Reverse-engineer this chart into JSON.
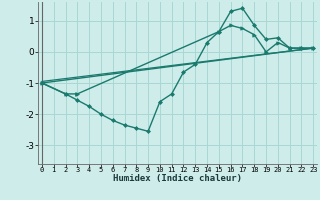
{
  "background_color": "#ceecea",
  "grid_color": "#a8d8d4",
  "line_color": "#1a7a6e",
  "xlim": [
    -0.3,
    23.3
  ],
  "ylim": [
    -3.6,
    1.6
  ],
  "xlabel": "Humidex (Indice chaleur)",
  "yticks": [
    -3,
    -2,
    -1,
    0,
    1
  ],
  "xticks": [
    0,
    1,
    2,
    3,
    4,
    5,
    6,
    7,
    8,
    9,
    10,
    11,
    12,
    13,
    14,
    15,
    16,
    17,
    18,
    19,
    20,
    21,
    22,
    23
  ],
  "series": [
    {
      "x": [
        0,
        2,
        3,
        4,
        5,
        6,
        7,
        8,
        9,
        10,
        11,
        12,
        13,
        14,
        15,
        16,
        17,
        18,
        19,
        20,
        21,
        22,
        23
      ],
      "y": [
        -1.0,
        -1.35,
        -1.55,
        -1.75,
        -2.0,
        -2.2,
        -2.35,
        -2.45,
        -2.55,
        -1.6,
        -1.35,
        -0.65,
        -0.4,
        0.3,
        0.65,
        1.3,
        1.4,
        0.85,
        0.4,
        0.45,
        0.12,
        0.12,
        0.12
      ],
      "marker": "D",
      "markersize": 2.0,
      "linewidth": 1.0
    },
    {
      "x": [
        0,
        2,
        3,
        3,
        15,
        16,
        17,
        18,
        19,
        20,
        21,
        22,
        23
      ],
      "y": [
        -1.0,
        -1.35,
        -1.35,
        -1.35,
        0.65,
        0.85,
        0.75,
        0.55,
        0.0,
        0.3,
        0.12,
        0.12,
        0.12
      ],
      "marker": ">",
      "markersize": 2.5,
      "linewidth": 1.0
    },
    {
      "x": [
        0,
        23
      ],
      "y": [
        -1.0,
        0.12
      ],
      "marker": null,
      "markersize": 0,
      "linewidth": 1.0
    },
    {
      "x": [
        0,
        23
      ],
      "y": [
        -0.95,
        0.12
      ],
      "marker": null,
      "markersize": 0,
      "linewidth": 0.9
    }
  ]
}
